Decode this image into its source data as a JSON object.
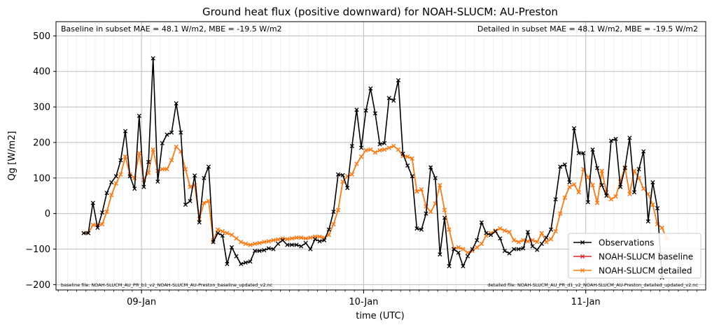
{
  "chart_data": {
    "type": "line",
    "title": "Ground heat flux (positive downward) for NOAH-SLUCM: AU-Preston",
    "xlabel": "time (UTC)",
    "ylabel": "Qg [W/m2]",
    "ylim": [
      -215,
      540
    ],
    "xlim": [
      -0.385,
      2.54
    ],
    "yticks": [
      -200,
      -100,
      0,
      100,
      200,
      300,
      400,
      500
    ],
    "xticks": [
      {
        "value": 0,
        "label": "09-Jan"
      },
      {
        "value": 1,
        "label": "10-Jan"
      },
      {
        "value": 2,
        "label": "11-Jan"
      }
    ],
    "grid": true,
    "legend_position": "lower-right",
    "annotations": {
      "left_stats": "Baseline in subset MAE = 48.1 W/m2, MBE = -19.5 W/m2",
      "right_stats": "Detailed in subset MAE = 48.1 W/m2, MBE = -19.5 W/m2",
      "left_file": "baseline file: NOAH-SLUCM_AU_PR_b1_v2_NOAH-SLUCM_AU-Preston_baseline_updated_v2.nc",
      "right_file": "detailed file: NOAH-SLUCM_AU_PR_d1_v2_NOAH-SLUCM_AU-Preston_detailed_updated_v2.nc"
    },
    "x_start": -0.2604,
    "x_step": 0.02083,
    "series": [
      {
        "name": "Observations",
        "color": "#000000",
        "values": [
          -55,
          -55,
          30,
          -40,
          3,
          58,
          88,
          105,
          150,
          232,
          105,
          70,
          275,
          75,
          145,
          437,
          90,
          198,
          222,
          228,
          310,
          228,
          25,
          35,
          107,
          -25,
          100,
          132,
          -80,
          -55,
          -62,
          -142,
          -95,
          -120,
          -142,
          -138,
          -135,
          -105,
          -105,
          -103,
          -98,
          -100,
          -85,
          -75,
          -88,
          -88,
          -88,
          -92,
          -83,
          -100,
          -72,
          -78,
          -75,
          -45,
          5,
          110,
          108,
          72,
          190,
          292,
          185,
          290,
          352,
          282,
          195,
          198,
          325,
          318,
          375,
          168,
          135,
          105,
          -42,
          -45,
          0,
          130,
          100,
          -115,
          -12,
          -148,
          -100,
          -110,
          -148,
          -120,
          -100,
          -75,
          -25,
          -55,
          -60,
          -50,
          -70,
          -105,
          -112,
          -100,
          -100,
          -98,
          -52,
          -92,
          -102,
          -85,
          -68,
          -45,
          40,
          132,
          138,
          88,
          240,
          170,
          170,
          32,
          180,
          128,
          80,
          50,
          205,
          210,
          75,
          128,
          213,
          60,
          125,
          175,
          -22,
          88,
          15,
          -180
        ],
        "y_marks": []
      },
      {
        "name": "NOAH-SLUCM baseline",
        "color": "#d62728",
        "values": [
          -55,
          -55,
          -32,
          -32,
          -30,
          5,
          52,
          85,
          110,
          160,
          110,
          100,
          170,
          95,
          115,
          180,
          120,
          125,
          125,
          150,
          188,
          175,
          125,
          75,
          80,
          -15,
          30,
          35,
          -75,
          -45,
          -50,
          -55,
          -60,
          -70,
          -80,
          -85,
          -88,
          -85,
          -83,
          -80,
          -78,
          -75,
          -73,
          -70,
          -72,
          -70,
          -68,
          -68,
          -70,
          -68,
          -65,
          -65,
          -68,
          -60,
          -30,
          10,
          90,
          105,
          110,
          140,
          160,
          178,
          180,
          172,
          178,
          180,
          185,
          190,
          180,
          162,
          160,
          155,
          62,
          68,
          20,
          5,
          28,
          80,
          10,
          -45,
          -100,
          -95,
          -100,
          -110,
          -105,
          -95,
          -85,
          -62,
          -55,
          -48,
          -42,
          -48,
          -52,
          -75,
          -80,
          -75,
          -78,
          -75,
          -80,
          -55,
          -80,
          -72,
          -50,
          0,
          45,
          75,
          82,
          60,
          125,
          102,
          80,
          30,
          120,
          60,
          40,
          48,
          90,
          130,
          55,
          120,
          100,
          70,
          55,
          25,
          -30,
          -40,
          -70
        ],
        "y_marks": []
      },
      {
        "name": "NOAH-SLUCM detailed",
        "color": "#ff7f0e",
        "values": [
          -55,
          -55,
          -32,
          -32,
          -30,
          5,
          52,
          85,
          110,
          160,
          110,
          100,
          170,
          95,
          115,
          180,
          120,
          125,
          125,
          150,
          188,
          175,
          125,
          75,
          80,
          -15,
          30,
          35,
          -75,
          -45,
          -50,
          -55,
          -60,
          -70,
          -80,
          -85,
          -88,
          -85,
          -83,
          -80,
          -78,
          -75,
          -73,
          -70,
          -72,
          -70,
          -68,
          -68,
          -70,
          -68,
          -65,
          -65,
          -68,
          -60,
          -30,
          10,
          90,
          105,
          110,
          140,
          160,
          178,
          180,
          172,
          178,
          180,
          185,
          190,
          180,
          162,
          160,
          155,
          62,
          68,
          20,
          5,
          28,
          80,
          10,
          -45,
          -100,
          -95,
          -100,
          -110,
          -105,
          -95,
          -85,
          -62,
          -55,
          -48,
          -42,
          -48,
          -52,
          -75,
          -80,
          -75,
          -78,
          -75,
          -80,
          -55,
          -80,
          -72,
          -50,
          0,
          45,
          75,
          82,
          60,
          125,
          102,
          80,
          30,
          120,
          60,
          40,
          48,
          90,
          130,
          55,
          120,
          100,
          70,
          55,
          25,
          -30,
          -40,
          -70
        ],
        "y_marks": []
      }
    ]
  }
}
